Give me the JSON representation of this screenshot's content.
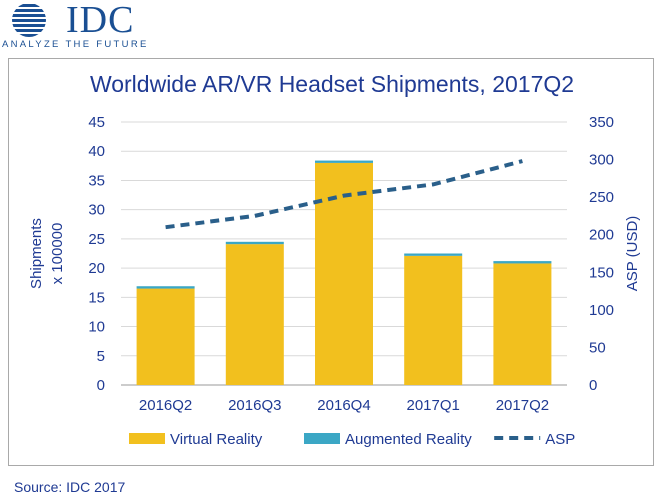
{
  "header": {
    "logo_text": "IDC",
    "tagline": "ANALYZE THE FUTURE",
    "colors": {
      "brand": "#1a4f93"
    }
  },
  "footer": {
    "source": "Source: IDC 2017"
  },
  "chart_data": {
    "type": "bar",
    "title": "Worldwide AR/VR Headset Shipments, 2017Q2",
    "categories": [
      "2016Q2",
      "2016Q3",
      "2016Q4",
      "2017Q1",
      "2017Q2"
    ],
    "stacked": true,
    "series": [
      {
        "name": "Virtual Reality",
        "type": "bar",
        "axis": "left",
        "color": "#f2c01e",
        "values": [
          16.5,
          24.1,
          38.0,
          22.1,
          20.8
        ]
      },
      {
        "name": "Augmented Reality",
        "type": "bar",
        "axis": "left",
        "color": "#3ba7c5",
        "values": [
          0.4,
          0.4,
          0.4,
          0.4,
          0.4
        ]
      },
      {
        "name": "ASP",
        "type": "line",
        "axis": "right",
        "style": "dashed",
        "color": "#2a5f8a",
        "values": [
          210,
          225,
          252,
          267,
          298
        ]
      }
    ],
    "ylabel_left": [
      "Shipments",
      "x 100000"
    ],
    "ylabel_right": "ASP (USD)",
    "ylim_left": [
      0,
      45
    ],
    "yticks_left": [
      "0",
      "5",
      "10",
      "15",
      "20",
      "25",
      "30",
      "35",
      "40",
      "45"
    ],
    "ylim_right": [
      0,
      350
    ],
    "yticks_right": [
      "0",
      "50",
      "100",
      "150",
      "200",
      "250",
      "300",
      "350"
    ],
    "grid": true,
    "legend": "bottom"
  }
}
